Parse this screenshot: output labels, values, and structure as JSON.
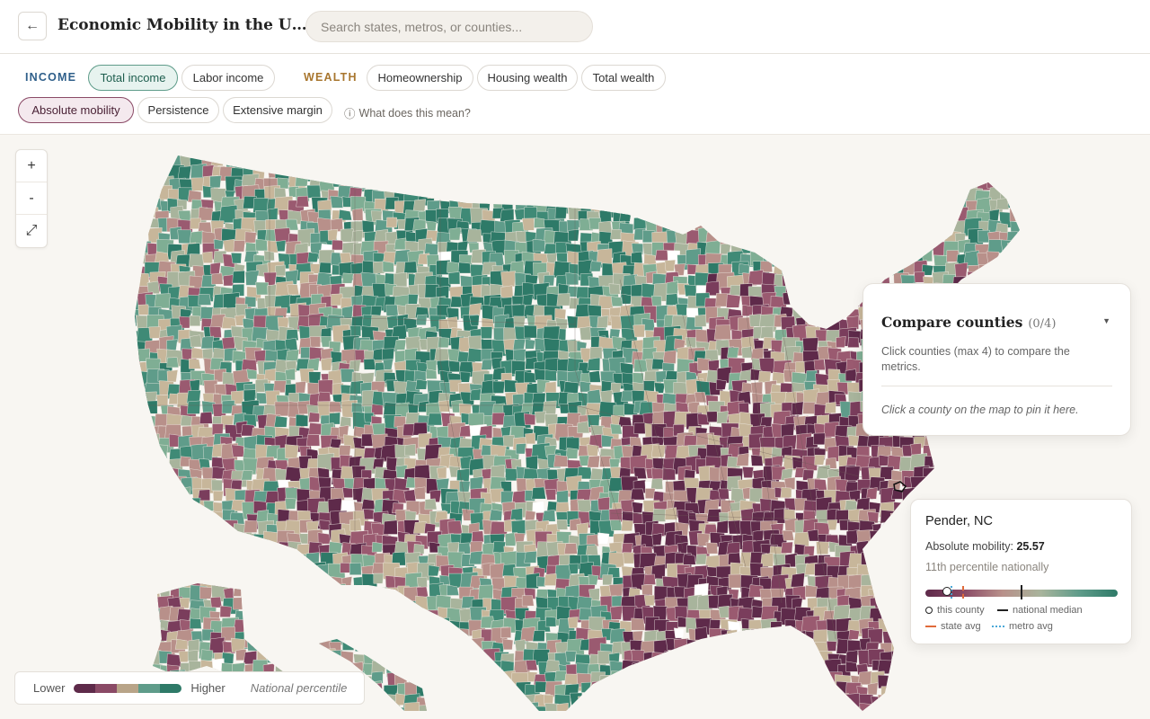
{
  "header": {
    "back_label": "←",
    "title": "Economic Mobility in the United States",
    "search_placeholder": "Search states, metros, or counties..."
  },
  "toolbar": {
    "income_label": "INCOME",
    "income_options": [
      "Total income",
      "Labor income"
    ],
    "income_selected": "Total income",
    "wealth_label": "WEALTH",
    "wealth_options": [
      "Homeownership",
      "Housing wealth",
      "Total wealth"
    ],
    "metric_options": [
      "Absolute mobility",
      "Persistence",
      "Extensive margin"
    ],
    "metric_selected": "Absolute mobility",
    "help_icon": "ⓘ",
    "help_label": "What does this mean?",
    "colors": {
      "income": "#2f5f8a",
      "wealth": "#a8762e"
    }
  },
  "zoom": {
    "in": "+",
    "out": "-",
    "reset": "⤢"
  },
  "legend": {
    "lower": "Lower",
    "higher": "Higher",
    "caption": "National percentile",
    "colors": [
      "#5e2a4a",
      "#8a4a66",
      "#b8a488",
      "#5f9c8a",
      "#2e7a68"
    ]
  },
  "compare": {
    "title": "Compare counties",
    "count": "(0/4)",
    "caret": "▼",
    "description": "Click counties (max 4) to compare the metrics.",
    "hint": "Click a county on the map to pin it here."
  },
  "tooltip": {
    "county": "Pender, NC",
    "metric_label": "Absolute mobility:",
    "metric_value": "25.57",
    "percentile_text": "11th percentile nationally",
    "county_pos": 0.11,
    "median_pos": 0.5,
    "state_avg_pos": 0.19,
    "metro_avg_pos": 0.13,
    "keys": {
      "county": "this county",
      "median": "national median",
      "state": "state avg",
      "metro": "metro avg"
    }
  },
  "map": {
    "palette": [
      "#5e2a4a",
      "#7a3d5c",
      "#9a5a70",
      "#b8908a",
      "#c7b69a",
      "#a8b49c",
      "#7fae94",
      "#5f9c8a",
      "#3f8a76",
      "#2e7a68"
    ],
    "no_data_color": "#ffffff"
  }
}
